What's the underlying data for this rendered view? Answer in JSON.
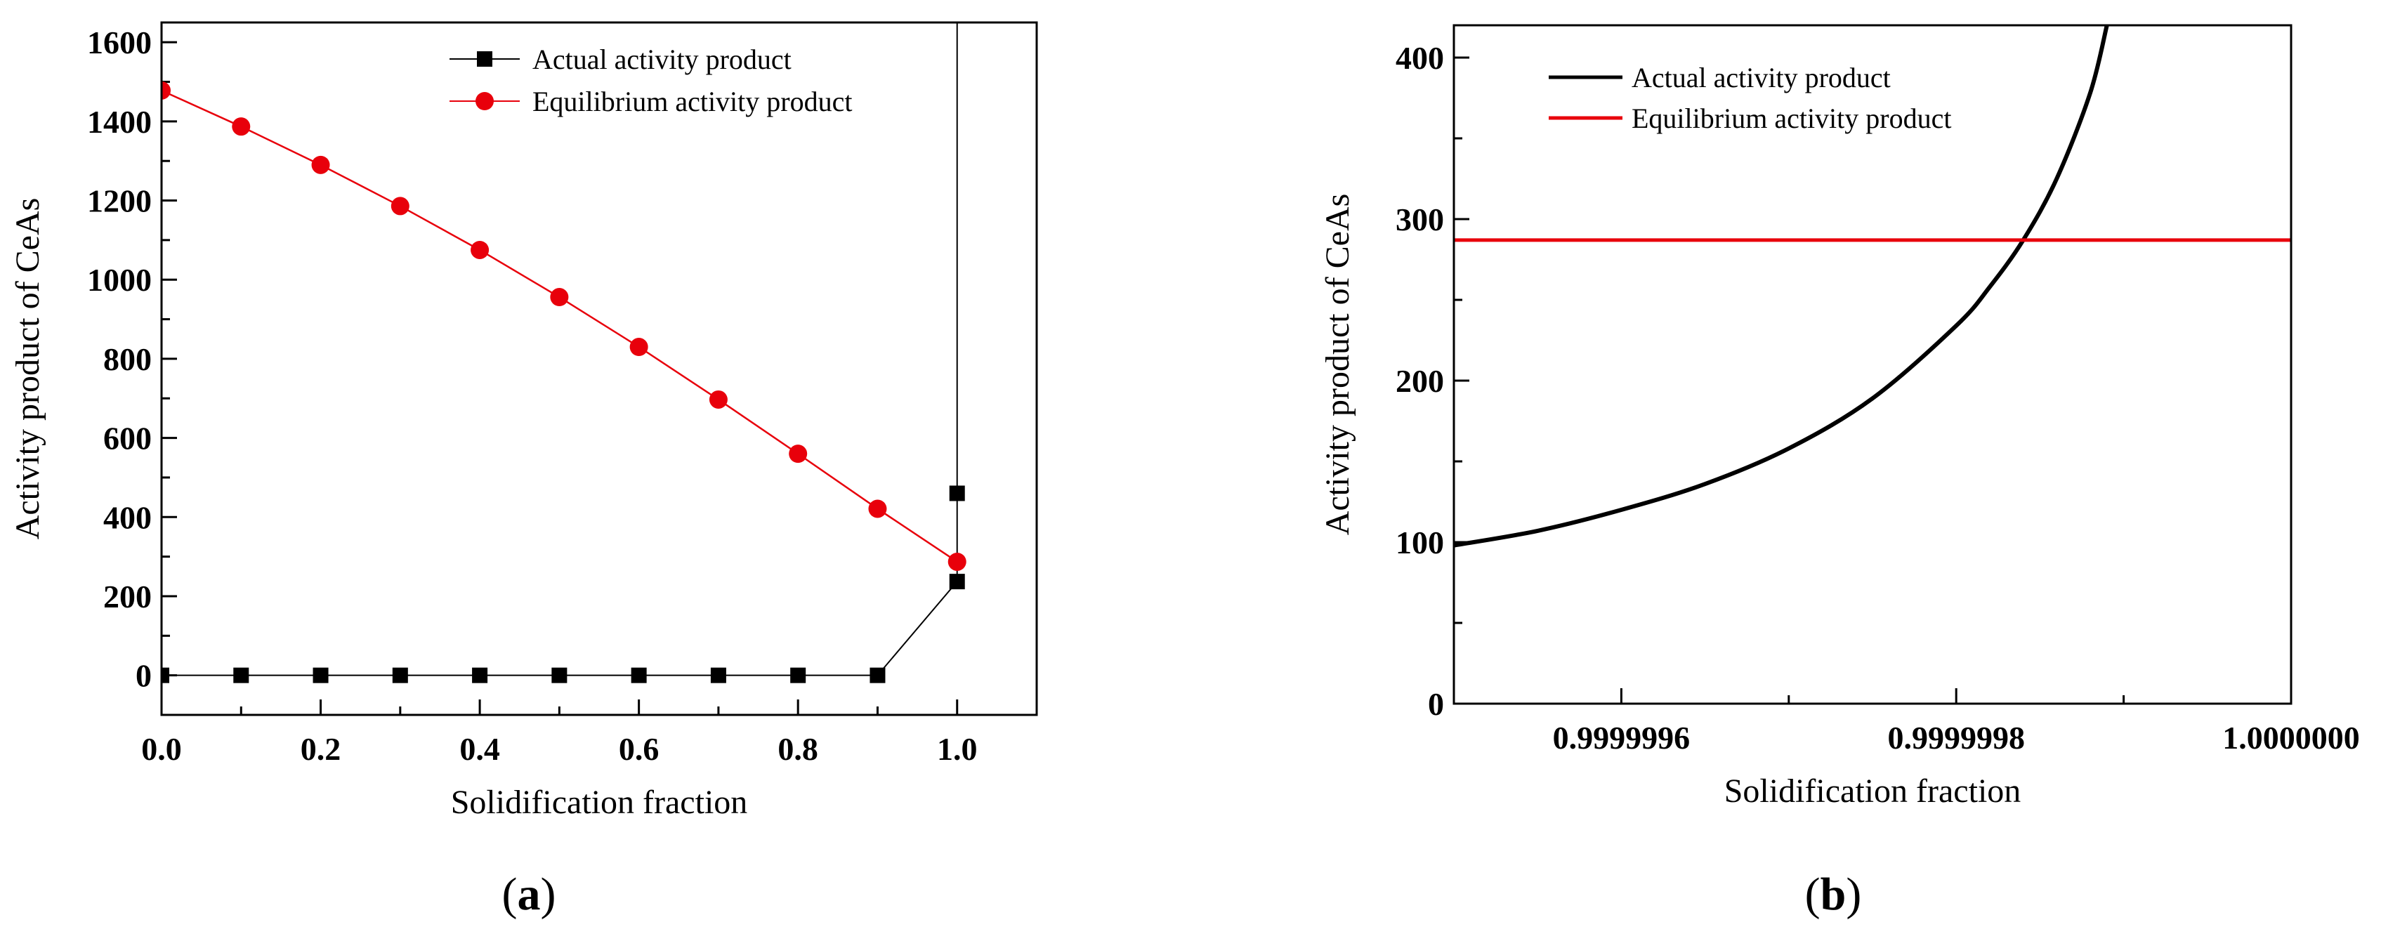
{
  "chart_data": [
    {
      "type": "line",
      "panel": "a",
      "xlabel": "Solidification fraction",
      "ylabel": "Activity product of CeAs",
      "xlim": [
        0.0,
        1.1
      ],
      "ylim": [
        -100,
        1650
      ],
      "xticks": [
        0.0,
        0.2,
        0.4,
        0.6,
        0.8,
        1.0
      ],
      "xtick_labels": [
        "0.0",
        "0.2",
        "0.4",
        "0.6",
        "0.8",
        "1.0"
      ],
      "xminor": [
        0.1,
        0.3,
        0.5,
        0.7,
        0.9
      ],
      "yticks": [
        0,
        200,
        400,
        600,
        800,
        1000,
        1200,
        1400,
        1600
      ],
      "ytick_labels": [
        "0",
        "200",
        "400",
        "600",
        "800",
        "1000",
        "1200",
        "1400",
        "1600"
      ],
      "yminor": [
        100,
        300,
        500,
        700,
        900,
        1100,
        1300,
        1500
      ],
      "legend_position": "top-center",
      "series": [
        {
          "name": "Actual activity product",
          "color": "#000000",
          "marker": "square",
          "x": [
            0.0,
            0.1,
            0.2,
            0.3,
            0.4,
            0.5,
            0.6,
            0.7,
            0.8,
            0.9,
            1.0,
            1.0,
            1.0
          ],
          "y": [
            0,
            0,
            0,
            0,
            0,
            0,
            0,
            0,
            0,
            0,
            237,
            460,
            1650
          ],
          "marker_points": 12
        },
        {
          "name": "Equilibrium activity product",
          "color": "#e8000b",
          "marker": "circle",
          "x": [
            0.0,
            0.1,
            0.2,
            0.3,
            0.4,
            0.5,
            0.6,
            0.7,
            0.8,
            0.9,
            1.0
          ],
          "y": [
            1478,
            1387,
            1290,
            1186,
            1075,
            956,
            830,
            697,
            560,
            421,
            287
          ]
        }
      ],
      "panel_label": "(a)"
    },
    {
      "type": "line",
      "panel": "b",
      "xlabel": "Solidification fraction",
      "ylabel": "Activity product of CeAs",
      "xlim": [
        0.9999995,
        1.0
      ],
      "ylim": [
        0,
        420
      ],
      "xticks": [
        0.9999996,
        0.9999998,
        1.0
      ],
      "xtick_labels": [
        "0.9999996",
        "0.9999998",
        "1.0000000"
      ],
      "xminor": [
        0.9999995,
        0.9999997,
        0.9999999
      ],
      "yticks": [
        0,
        100,
        200,
        300,
        400
      ],
      "ytick_labels": [
        "0",
        "100",
        "200",
        "300",
        "400"
      ],
      "yminor": [
        50,
        150,
        250,
        350
      ],
      "legend_position": "top-left",
      "series": [
        {
          "name": "Actual activity product",
          "color": "#000000",
          "x": [
            0.9999995,
            0.99999955,
            0.9999996,
            0.99999965,
            0.9999997,
            0.99999975,
            0.9999998,
            0.99999982,
            0.99999984,
            0.99999986,
            0.99999988,
            0.99999989
          ],
          "y": [
            98,
            107,
            120,
            136,
            158,
            189,
            234,
            258,
            287,
            325,
            378,
            420
          ]
        },
        {
          "name": "Equilibrium activity product",
          "color": "#e8000b",
          "x": [
            0.9999995,
            1.0
          ],
          "y": [
            287,
            287
          ]
        }
      ],
      "panel_label": "(b)"
    }
  ]
}
